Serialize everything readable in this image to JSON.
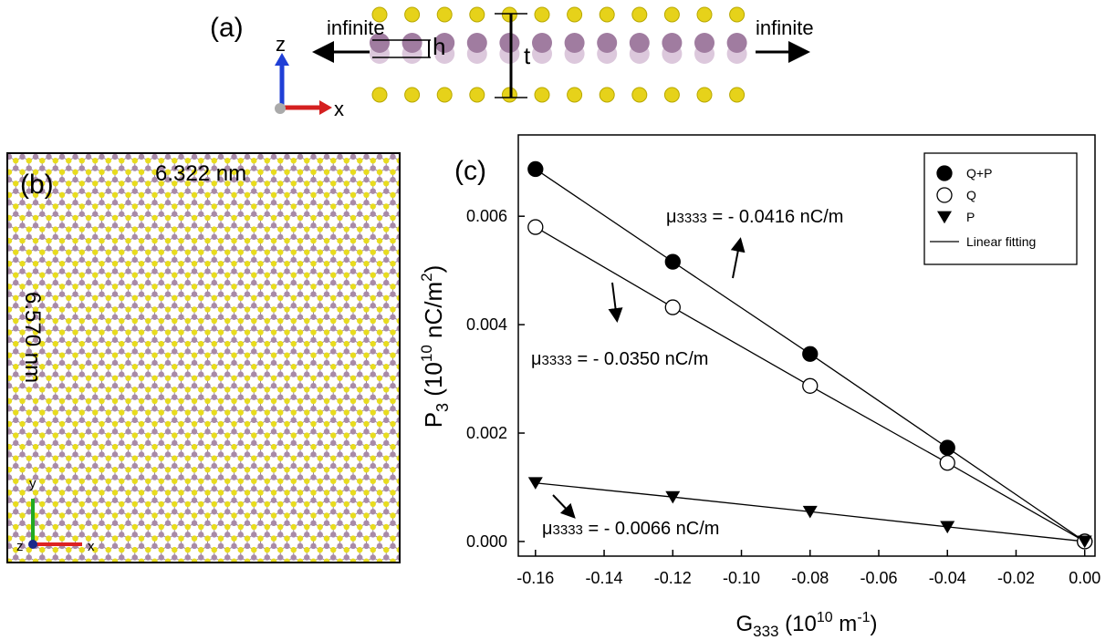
{
  "panel_a": {
    "label": "(a)",
    "left_text": "infinite",
    "right_text": "infinite",
    "h_label": "h",
    "t_label": "t",
    "z_axis": "z",
    "x_axis": "x"
  },
  "panel_b": {
    "label": "(b)",
    "width_label": "6.322 nm",
    "height_label": "6.570 nm",
    "y_axis": "y",
    "z_axis": "z",
    "x_axis": "x"
  },
  "chart_data": {
    "type": "scatter",
    "panel_label": "(c)",
    "x_label": {
      "main": "G",
      "sub": "333",
      "rest": " (10",
      "sup": "10",
      "rest2": " m",
      "sup2": "-1",
      "end": ")"
    },
    "y_label": {
      "main": "P",
      "sub": "3",
      "rest": " (10",
      "sup": "10",
      "rest2": " nC/m",
      "sup2": "2",
      "end": ")"
    },
    "x": [
      -0.16,
      -0.12,
      -0.08,
      -0.04,
      0
    ],
    "series": [
      {
        "name": "Q+P",
        "color": "#000000",
        "marker": "filled-circle",
        "values": [
          0.00687,
          0.00516,
          0.00346,
          0.00173,
          0
        ]
      },
      {
        "name": "Q",
        "color": "#000000",
        "marker": "open-circle",
        "values": [
          0.0058,
          0.00432,
          0.00287,
          0.00145,
          0
        ]
      },
      {
        "name": "P",
        "color": "#000000",
        "marker": "triangle-down",
        "values": [
          0.00108,
          0.00082,
          0.00055,
          0.00027,
          0
        ]
      }
    ],
    "fit_label": "Linear fitting",
    "annotations": [
      {
        "symbol": "μ",
        "sub": "3333",
        "text": " = - 0.0416 nC/m"
      },
      {
        "symbol": "μ",
        "sub": "3333",
        "text": " = - 0.0350 nC/m"
      },
      {
        "symbol": "μ",
        "sub": "3333",
        "text": " = - 0.0066 nC/m"
      }
    ],
    "xlim": [
      -0.165,
      0.003
    ],
    "ylim": [
      -0.00027,
      0.0075
    ],
    "xticks": [
      -0.16,
      -0.14,
      -0.12,
      {
        "value": -0.1,
        "label": "-0.10"
      },
      -0.08,
      -0.06,
      -0.04,
      -0.02,
      {
        "value": 0,
        "label": "0.00"
      }
    ],
    "yticks": [
      {
        "value": 0,
        "label": "0.000"
      },
      {
        "value": 0.002,
        "label": "0.002"
      },
      {
        "value": 0.004,
        "label": "0.004"
      },
      {
        "value": 0.006,
        "label": "0.006"
      }
    ],
    "legend": "upper-right"
  }
}
